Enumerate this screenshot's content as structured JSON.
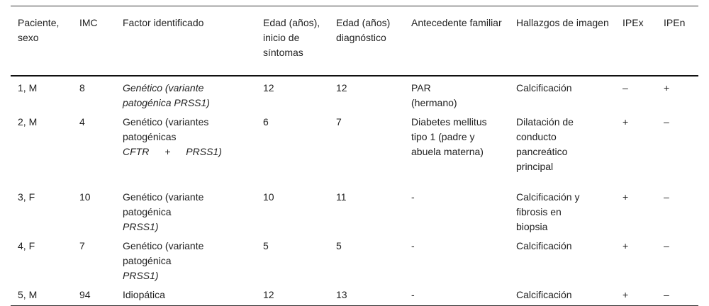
{
  "headers": [
    "Paciente, sexo",
    "IMC",
    "Factor identificado",
    "Edad (años), inicio de síntomas",
    "Edad (años) diagnóstico",
    "Antecedente familiar",
    "Hallazgos de imagen",
    "IPEx",
    "IPEn"
  ],
  "rows": [
    {
      "paciente": "1, M",
      "imc": "8",
      "factor_plain": "",
      "factor_italic": "Genético (variante patogénica PRSS1)",
      "inicio": "12",
      "diagnostico": "12",
      "antecedente": "PAR (hermano)",
      "imagen": "Calcificación",
      "ipex": "–",
      "ipen": "+"
    },
    {
      "paciente": "2, M",
      "imc": "4",
      "factor_plain": "Genético (variantes patogénicas",
      "factor_italic": "CFTR + PRSS1)",
      "inicio": "6",
      "diagnostico": "7",
      "antecedente": "Diabetes mellitus tipo 1 (padre y abuela materna)",
      "imagen": "Dilatación de conducto pancreático principal",
      "ipex": "+",
      "ipen": "–"
    },
    {
      "paciente": "3, F",
      "imc": "10",
      "factor_plain": "Genético (variante patogénica ",
      "factor_italic": "PRSS1)",
      "inicio": "10",
      "diagnostico": "11",
      "antecedente": "-",
      "imagen": "Calcificación y fibrosis en biopsia",
      "ipex": "+",
      "ipen": "–"
    },
    {
      "paciente": "4, F",
      "imc": "7",
      "factor_plain": "Genético (variante patogénica ",
      "factor_italic": "PRSS1)",
      "inicio": "5",
      "diagnostico": "5",
      "antecedente": "-",
      "imagen": "Calcificación",
      "ipex": "+",
      "ipen": "–"
    },
    {
      "paciente": "5, M",
      "imc": "94",
      "factor_plain": "Idiopática",
      "factor_italic": "",
      "inicio": "12",
      "diagnostico": "13",
      "antecedente": "-",
      "imagen": "Calcificación",
      "ipex": "+",
      "ipen": "–"
    }
  ]
}
